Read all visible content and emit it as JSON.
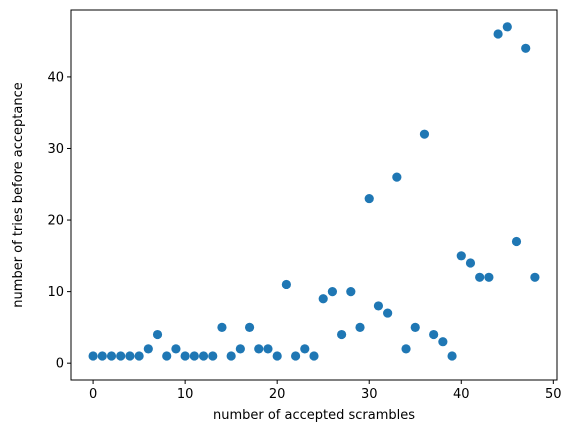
{
  "chart_data": {
    "type": "scatter",
    "title": "",
    "xlabel": "number of accepted scrambles",
    "ylabel": "number of tries before acceptance",
    "xlim": [
      -2.4,
      50.4
    ],
    "ylim": [
      -2.35,
      49.35
    ],
    "xticks": [
      0,
      10,
      20,
      30,
      40,
      50
    ],
    "yticks": [
      0,
      10,
      20,
      30,
      40
    ],
    "grid": false,
    "marker_color": "#1f77b4",
    "series": [
      {
        "x": [
          0,
          1,
          2,
          3,
          4,
          5,
          6,
          7,
          8,
          9,
          10,
          11,
          12,
          13,
          14,
          15,
          16,
          17,
          18,
          19,
          20,
          21,
          22,
          23,
          24,
          25,
          26,
          27,
          28,
          29,
          30,
          31,
          32,
          33,
          34,
          35,
          36,
          37,
          38,
          39,
          40,
          41,
          42,
          43,
          44,
          45,
          46,
          47,
          48
        ],
        "y": [
          1,
          1,
          1,
          1,
          1,
          1,
          2,
          4,
          1,
          2,
          1,
          1,
          1,
          1,
          5,
          1,
          2,
          5,
          2,
          2,
          1,
          11,
          1,
          2,
          1,
          9,
          10,
          4,
          10,
          5,
          23,
          8,
          7,
          26,
          2,
          5,
          32,
          4,
          3,
          1,
          15,
          14,
          12,
          12,
          46,
          47,
          17,
          44,
          12
        ]
      }
    ]
  }
}
